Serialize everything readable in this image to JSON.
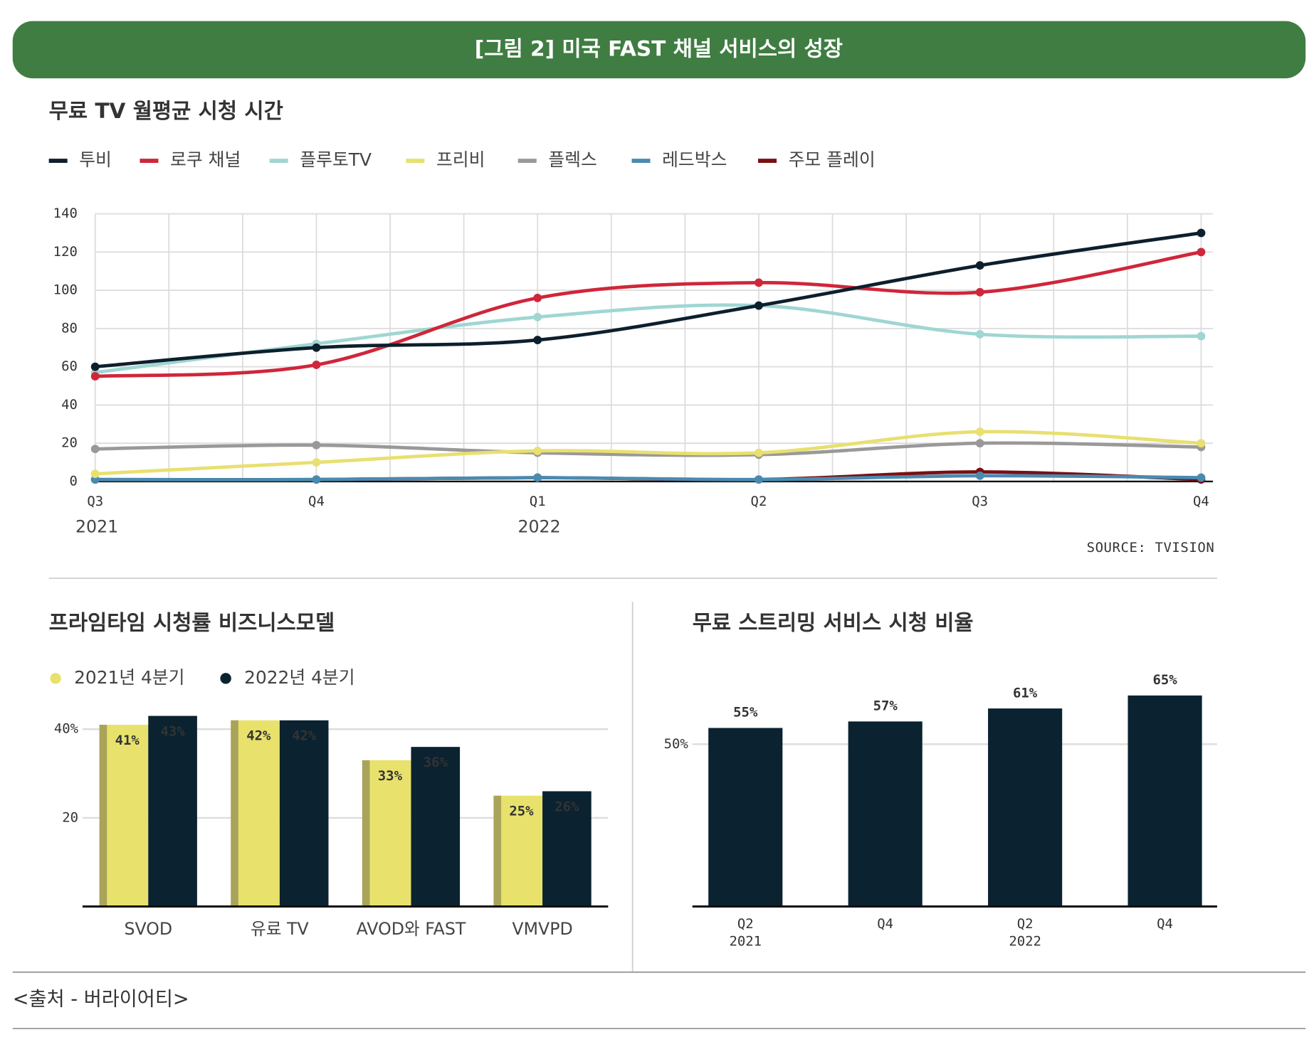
{
  "header": {
    "title": "[그림 2] 미국 FAST 채널 서비스의 성장"
  },
  "footer": {
    "source": "<출처 - 버라이어티>"
  },
  "chart_data": [
    {
      "type": "line",
      "title": "무료 TV 월평균 시청 시간",
      "categories": [
        "Q3",
        "Q4",
        "Q1",
        "Q2",
        "Q3",
        "Q4"
      ],
      "x_group_labels": [
        "2021",
        null,
        "2022",
        null,
        null,
        null
      ],
      "series": [
        {
          "name": "투비",
          "color": "#0d1f2d",
          "values": [
            60,
            70,
            74,
            92,
            113,
            130
          ]
        },
        {
          "name": "로쿠 채널",
          "color": "#d0263a",
          "values": [
            55,
            61,
            96,
            104,
            99,
            120
          ]
        },
        {
          "name": "플루토TV",
          "color": "#9fd6d2",
          "values": [
            57,
            72,
            86,
            92,
            77,
            76
          ]
        },
        {
          "name": "프리비",
          "color": "#e8e070",
          "values": [
            4,
            10,
            16,
            15,
            26,
            20
          ]
        },
        {
          "name": "플렉스",
          "color": "#999999",
          "values": [
            17,
            19,
            15,
            14,
            20,
            18
          ]
        },
        {
          "name": "레드박스",
          "color": "#4a8ab0",
          "values": [
            1,
            1,
            2,
            1,
            3,
            2
          ]
        },
        {
          "name": "주모 플레이",
          "color": "#7a0f14",
          "values": [
            1,
            1,
            2,
            1,
            5,
            1
          ]
        }
      ],
      "ylim": [
        0,
        140
      ],
      "yticks": [
        0,
        20,
        40,
        60,
        80,
        100,
        120,
        140
      ],
      "grid": true,
      "source": "SOURCE: TVISION"
    },
    {
      "type": "bar",
      "title": "프라임타임 시청률 비즈니스모델",
      "categories": [
        "SVOD",
        "유료 TV",
        "AVOD와 FAST",
        "VMVPD"
      ],
      "series": [
        {
          "name": "2021년 4분기",
          "color": "#e8e26c",
          "values": [
            41,
            42,
            33,
            25
          ],
          "value_labels": [
            "41%",
            "42%",
            "33%",
            "25%"
          ]
        },
        {
          "name": "2022년 4분기",
          "color": "#0b2230",
          "values": [
            43,
            42,
            36,
            26
          ],
          "value_labels": [
            "43%",
            "42%",
            "36%",
            "26%"
          ]
        }
      ],
      "ylim": [
        0,
        45
      ],
      "yticks": [
        20,
        {
          "value": 40,
          "label": "40%"
        }
      ],
      "grid": true
    },
    {
      "type": "bar",
      "title": "무료 스트리밍 서비스 시청 비율",
      "categories": [
        "Q2",
        "Q4",
        "Q2",
        "Q4"
      ],
      "x_group_labels": [
        "2021",
        null,
        "2022",
        null
      ],
      "values": [
        55,
        57,
        61,
        65
      ],
      "value_labels": [
        "55%",
        "57%",
        "61%",
        "65%"
      ],
      "color": "#0b2230",
      "ylim": [
        0,
        70
      ],
      "yticks": [
        {
          "value": 50,
          "label": "50%"
        }
      ],
      "grid": true
    }
  ]
}
